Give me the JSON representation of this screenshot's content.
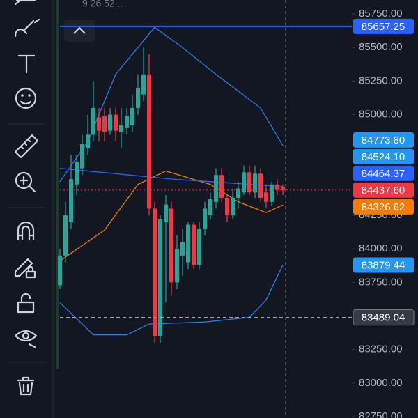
{
  "chart_data": {
    "type": "candlestick",
    "header_text": "9 26 52...",
    "ylim": [
      82740,
      85854
    ],
    "yticks": [
      {
        "value": 85750,
        "label": "85750.00"
      },
      {
        "value": 85500,
        "label": "85500.00"
      },
      {
        "value": 85250,
        "label": "85250.00"
      },
      {
        "value": 85000,
        "label": "85000.00"
      },
      {
        "value": 84250,
        "label": "84250.00"
      },
      {
        "value": 84000,
        "label": "84000.00"
      },
      {
        "value": 83750,
        "label": "83750.00"
      },
      {
        "value": 83250,
        "label": "83250.00"
      },
      {
        "value": 83000,
        "label": "83000.00"
      },
      {
        "value": 82750,
        "label": "82750.00"
      }
    ],
    "up_color": "#26a69a",
    "down_color": "#f23645",
    "open": [
      83730,
      83950,
      84200,
      84480,
      84600,
      84750,
      84850,
      84980,
      84990,
      84880,
      85000,
      84870,
      84900,
      84920,
      85050,
      85150,
      85300,
      84300,
      83350,
      84200,
      84300,
      83750,
      83950,
      83900,
      84180,
      83880,
      84150,
      84250,
      84350,
      84550,
      84380,
      84250,
      84380,
      84420,
      84570,
      84420,
      84560,
      84420,
      84350,
      84480,
      84460
    ],
    "high": [
      84000,
      84350,
      84700,
      84700,
      84850,
      85000,
      85250,
      85050,
      85050,
      85050,
      85050,
      85050,
      85050,
      85150,
      85300,
      85500,
      85450,
      84350,
      84250,
      84400,
      84350,
      84100,
      84150,
      84200,
      84200,
      84200,
      84350,
      84420,
      84600,
      84600,
      84400,
      84450,
      84500,
      84620,
      84620,
      84620,
      84600,
      84480,
      84500,
      84520,
      84480
    ],
    "low": [
      83700,
      83900,
      84150,
      84400,
      84550,
      84700,
      84800,
      84800,
      84800,
      84850,
      84800,
      84750,
      84850,
      84870,
      85000,
      85100,
      84250,
      83300,
      83300,
      83600,
      83650,
      83700,
      83800,
      83850,
      83850,
      83850,
      84100,
      84220,
      84300,
      84350,
      84200,
      84220,
      84300,
      84400,
      84400,
      84380,
      84350,
      84300,
      84320,
      84400,
      84400
    ],
    "close": [
      83950,
      84250,
      84520,
      84650,
      84780,
      84850,
      85050,
      84880,
      84870,
      85000,
      84880,
      84920,
      84990,
      85050,
      85200,
      85300,
      84300,
      83350,
      84220,
      84330,
      83750,
      84000,
      84050,
      84180,
      83880,
      84150,
      84300,
      84370,
      84550,
      84380,
      84250,
      84380,
      84450,
      84570,
      84420,
      84560,
      84380,
      84350,
      84480,
      84440,
      84437.6
    ],
    "lines": [
      {
        "color": "#2e7de9",
        "x": [
          0,
          5,
          10,
          17,
          22,
          28,
          36,
          40
        ],
        "values": [
          84500,
          84800,
          85300,
          85650,
          85500,
          85300,
          85050,
          84770
        ]
      },
      {
        "color": "#2e7de9",
        "x": [
          0,
          6,
          12,
          16,
          26,
          34,
          37,
          40
        ],
        "values": [
          83600,
          83360,
          83360,
          83440,
          83455,
          83490,
          83620,
          83880
        ]
      },
      {
        "color": "#f57c00",
        "x": [
          0,
          8,
          14,
          19,
          27,
          32,
          37,
          40
        ],
        "values": [
          83910,
          84140,
          84480,
          84580,
          84480,
          84350,
          84270,
          84327
        ]
      },
      {
        "color": "#2962ff",
        "x": [
          0,
          20,
          40
        ],
        "values": [
          84600,
          84520,
          84464
        ]
      }
    ],
    "price_labels": [
      {
        "value": 85657.25,
        "color": "#2962ff",
        "line": "solid"
      },
      {
        "value": 84773.8,
        "label": "84773.80",
        "color": "#2196f3"
      },
      {
        "value": 84524.1,
        "label": "84524.10",
        "color": "#2196f3"
      },
      {
        "value": 84464.37,
        "color": "#2962ff"
      },
      {
        "value": 84437.6,
        "label": "84437.60",
        "color": "#f23645",
        "line": "dotted"
      },
      {
        "value": 84326.62,
        "color": "#f57c00"
      },
      {
        "value": 83879.44,
        "color": "#2196f3"
      },
      {
        "value": 83489.04,
        "color": "#363a45",
        "line": "dashed"
      }
    ]
  }
}
